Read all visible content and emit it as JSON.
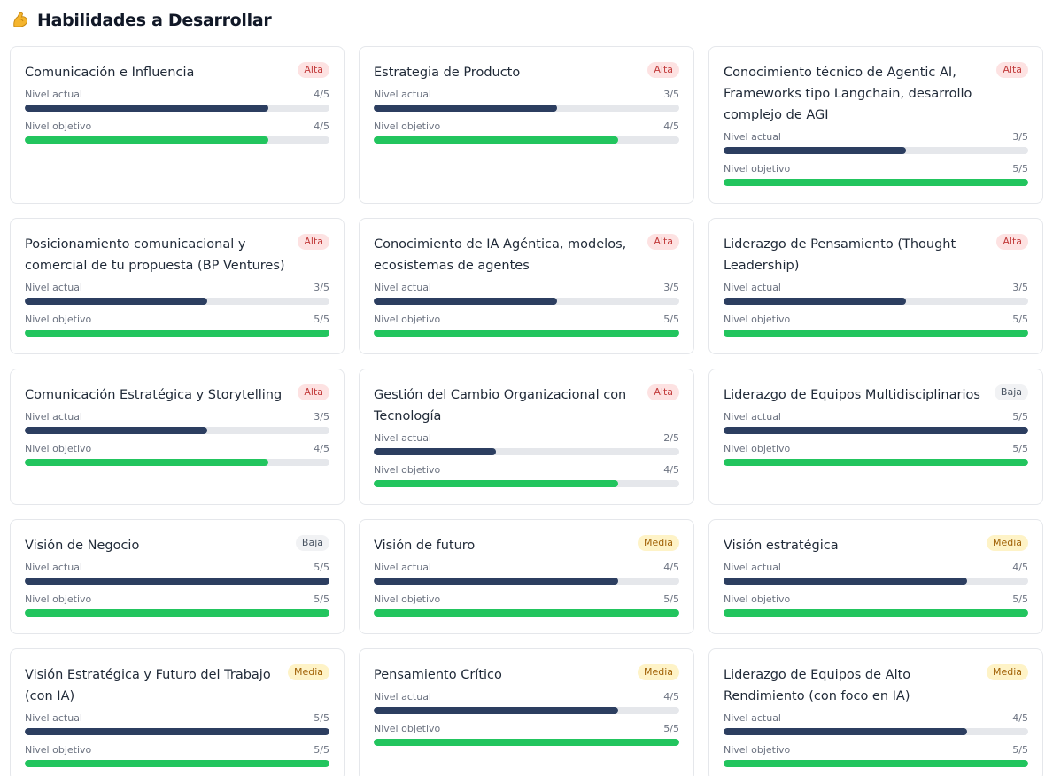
{
  "header": {
    "icon": "flexed-biceps-icon",
    "title": "Habilidades a Desarrollar"
  },
  "labels": {
    "actual": "Nivel actual",
    "objetivo": "Nivel objetivo"
  },
  "colors": {
    "actual": "#2c3e60",
    "objetivo": "#22c55e",
    "alta": "#c23b3b",
    "media": "#a16207",
    "baja": "#4b5563"
  },
  "skills": [
    {
      "title": "Comunicación e Influencia",
      "priority": "Alta",
      "priority_level": "alta",
      "actual": 4,
      "actual_text": "4/5",
      "objetivo": 4,
      "objetivo_text": "4/5"
    },
    {
      "title": "Estrategia de Producto",
      "priority": "Alta",
      "priority_level": "alta",
      "actual": 3,
      "actual_text": "3/5",
      "objetivo": 4,
      "objetivo_text": "4/5"
    },
    {
      "title": "Conocimiento técnico de Agentic AI, Frameworks tipo Langchain, desarrollo complejo de AGI",
      "priority": "Alta",
      "priority_level": "alta",
      "actual": 3,
      "actual_text": "3/5",
      "objetivo": 5,
      "objetivo_text": "5/5"
    },
    {
      "title": "Posicionamiento comunicacional y comercial de tu propuesta (BP Ventures)",
      "priority": "Alta",
      "priority_level": "alta",
      "actual": 3,
      "actual_text": "3/5",
      "objetivo": 5,
      "objetivo_text": "5/5"
    },
    {
      "title": "Conocimiento de IA Agéntica, modelos, ecosistemas de agentes",
      "priority": "Alta",
      "priority_level": "alta",
      "actual": 3,
      "actual_text": "3/5",
      "objetivo": 5,
      "objetivo_text": "5/5"
    },
    {
      "title": "Liderazgo de Pensamiento (Thought Leadership)",
      "priority": "Alta",
      "priority_level": "alta",
      "actual": 3,
      "actual_text": "3/5",
      "objetivo": 5,
      "objetivo_text": "5/5"
    },
    {
      "title": "Comunicación Estratégica y Storytelling",
      "priority": "Alta",
      "priority_level": "alta",
      "actual": 3,
      "actual_text": "3/5",
      "objetivo": 4,
      "objetivo_text": "4/5"
    },
    {
      "title": "Gestión del Cambio Organizacional con Tecnología",
      "priority": "Alta",
      "priority_level": "alta",
      "actual": 2,
      "actual_text": "2/5",
      "objetivo": 4,
      "objetivo_text": "4/5"
    },
    {
      "title": "Liderazgo de Equipos Multidisciplinarios",
      "priority": "Baja",
      "priority_level": "baja",
      "actual": 5,
      "actual_text": "5/5",
      "objetivo": 5,
      "objetivo_text": "5/5"
    },
    {
      "title": "Visión de Negocio",
      "priority": "Baja",
      "priority_level": "baja",
      "actual": 5,
      "actual_text": "5/5",
      "objetivo": 5,
      "objetivo_text": "5/5"
    },
    {
      "title": "Visión de futuro",
      "priority": "Media",
      "priority_level": "media",
      "actual": 4,
      "actual_text": "4/5",
      "objetivo": 5,
      "objetivo_text": "5/5"
    },
    {
      "title": "Visión estratégica",
      "priority": "Media",
      "priority_level": "media",
      "actual": 4,
      "actual_text": "4/5",
      "objetivo": 5,
      "objetivo_text": "5/5"
    },
    {
      "title": "Visión Estratégica y Futuro del Trabajo (con IA)",
      "priority": "Media",
      "priority_level": "media",
      "actual": 5,
      "actual_text": "5/5",
      "objetivo": 5,
      "objetivo_text": "5/5"
    },
    {
      "title": "Pensamiento Crítico",
      "priority": "Media",
      "priority_level": "media",
      "actual": 4,
      "actual_text": "4/5",
      "objetivo": 5,
      "objetivo_text": "5/5"
    },
    {
      "title": "Liderazgo de Equipos de Alto Rendimiento (con foco en IA)",
      "priority": "Media",
      "priority_level": "media",
      "actual": 4,
      "actual_text": "4/5",
      "objetivo": 5,
      "objetivo_text": "5/5"
    }
  ],
  "max_level": 5
}
